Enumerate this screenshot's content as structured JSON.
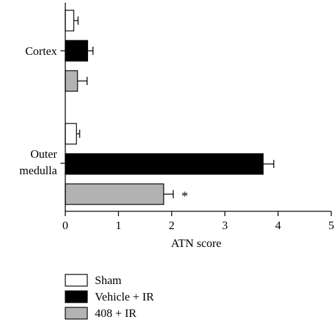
{
  "chart_data": {
    "type": "bar",
    "orientation": "horizontal",
    "title": "",
    "xlabel": "ATN score",
    "ylabel": "",
    "xlim": [
      0,
      5
    ],
    "xticks": [
      0,
      1,
      2,
      3,
      4,
      5
    ],
    "grid": false,
    "legend_position": "bottom-left",
    "categories": [
      {
        "id": "cortex",
        "lines": [
          "Cortex"
        ]
      },
      {
        "id": "outer-medulla",
        "lines": [
          "Outer",
          "medulla"
        ]
      }
    ],
    "series": [
      {
        "name": "Sham",
        "color": "#ffffff",
        "values": [
          0.16,
          0.21
        ],
        "errors": [
          0.08,
          0.06
        ]
      },
      {
        "name": "Vehicle + IR",
        "color": "#000000",
        "values": [
          0.42,
          3.72
        ],
        "errors": [
          0.1,
          0.2
        ]
      },
      {
        "name": "408 + IR",
        "color": "#b3b3b3",
        "values": [
          0.23,
          1.85
        ],
        "errors": [
          0.18,
          0.18
        ]
      }
    ],
    "annotations": [
      {
        "category": "outer-medulla",
        "series": "408 + IR",
        "text": "*"
      }
    ]
  }
}
